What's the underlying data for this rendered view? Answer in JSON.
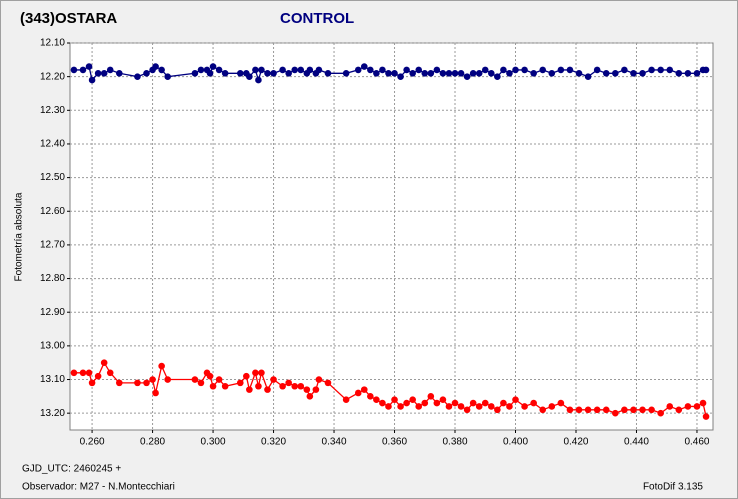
{
  "chart_data": {
    "type": "line",
    "title": "CONTROL",
    "y_label": "Fotometría absoluta",
    "footer_left": [
      "GJD_UTC: 2460245 +",
      "Observador: M27 - N.Montecchiari"
    ],
    "footer_right": "FotoDif 3.135",
    "grid": true,
    "y_inverted": true,
    "xlim": [
      0.2527,
      0.4653
    ],
    "ylim": [
      12.1,
      13.25
    ],
    "xticks": [
      {
        "value": 0.26,
        "label": "0.260"
      },
      {
        "value": 0.28,
        "label": "0.280"
      },
      {
        "value": 0.3,
        "label": "0.300"
      },
      {
        "value": 0.32,
        "label": "0.320"
      },
      {
        "value": 0.34,
        "label": "0.340"
      },
      {
        "value": 0.36,
        "label": "0.360"
      },
      {
        "value": 0.38,
        "label": "0.380"
      },
      {
        "value": 0.4,
        "label": "0.400"
      },
      {
        "value": 0.42,
        "label": "0.420"
      },
      {
        "value": 0.44,
        "label": "0.440"
      },
      {
        "value": 0.46,
        "label": "0.460"
      }
    ],
    "yticks": [
      {
        "value": 12.1,
        "label": "12.10"
      },
      {
        "value": 12.2,
        "label": "12.20"
      },
      {
        "value": 12.3,
        "label": "12.30"
      },
      {
        "value": 12.4,
        "label": "12.40"
      },
      {
        "value": 12.5,
        "label": "12.50"
      },
      {
        "value": 12.6,
        "label": "12.60"
      },
      {
        "value": 12.7,
        "label": "12.70"
      },
      {
        "value": 12.8,
        "label": "12.80"
      },
      {
        "value": 12.9,
        "label": "12.90"
      },
      {
        "value": 13.0,
        "label": "13.00"
      },
      {
        "value": 13.1,
        "label": "13.10"
      },
      {
        "value": 13.2,
        "label": "13.20"
      }
    ],
    "x": [
      0.254,
      0.257,
      0.259,
      0.26,
      0.262,
      0.264,
      0.266,
      0.269,
      0.275,
      0.278,
      0.28,
      0.281,
      0.283,
      0.285,
      0.294,
      0.296,
      0.298,
      0.299,
      0.3,
      0.302,
      0.304,
      0.309,
      0.311,
      0.312,
      0.314,
      0.315,
      0.316,
      0.318,
      0.32,
      0.323,
      0.325,
      0.327,
      0.329,
      0.331,
      0.332,
      0.334,
      0.335,
      0.338,
      0.344,
      0.348,
      0.35,
      0.352,
      0.354,
      0.356,
      0.358,
      0.36,
      0.362,
      0.364,
      0.366,
      0.368,
      0.37,
      0.372,
      0.374,
      0.376,
      0.378,
      0.38,
      0.382,
      0.384,
      0.386,
      0.388,
      0.39,
      0.392,
      0.394,
      0.396,
      0.398,
      0.4,
      0.403,
      0.406,
      0.409,
      0.412,
      0.415,
      0.418,
      0.421,
      0.424,
      0.427,
      0.43,
      0.433,
      0.436,
      0.439,
      0.442,
      0.445,
      0.448,
      0.451,
      0.454,
      0.457,
      0.46,
      0.462,
      0.463
    ],
    "series": [
      {
        "name": "(343)OSTARA",
        "color": "#ff0000",
        "values": [
          13.08,
          13.08,
          13.08,
          13.11,
          13.09,
          13.05,
          13.08,
          13.11,
          13.11,
          13.11,
          13.1,
          13.14,
          13.06,
          13.1,
          13.1,
          13.11,
          13.08,
          13.09,
          13.12,
          13.1,
          13.12,
          13.11,
          13.09,
          13.13,
          13.08,
          13.12,
          13.08,
          13.13,
          13.1,
          13.12,
          13.11,
          13.12,
          13.12,
          13.13,
          13.15,
          13.13,
          13.1,
          13.11,
          13.16,
          13.14,
          13.13,
          13.15,
          13.16,
          13.17,
          13.18,
          13.16,
          13.18,
          13.17,
          13.16,
          13.18,
          13.17,
          13.15,
          13.17,
          13.16,
          13.18,
          13.17,
          13.18,
          13.19,
          13.17,
          13.18,
          13.17,
          13.18,
          13.19,
          13.17,
          13.18,
          13.16,
          13.18,
          13.17,
          13.19,
          13.18,
          13.17,
          13.19,
          13.19,
          13.19,
          13.19,
          13.19,
          13.2,
          13.19,
          13.19,
          13.19,
          13.19,
          13.2,
          13.18,
          13.19,
          13.18,
          13.18,
          13.17,
          13.21
        ]
      },
      {
        "name": "CONTROL",
        "color": "#000080",
        "values": [
          12.18,
          12.18,
          12.17,
          12.21,
          12.19,
          12.19,
          12.18,
          12.19,
          12.2,
          12.19,
          12.18,
          12.17,
          12.18,
          12.2,
          12.19,
          12.18,
          12.18,
          12.19,
          12.17,
          12.18,
          12.19,
          12.19,
          12.19,
          12.2,
          12.18,
          12.21,
          12.18,
          12.19,
          12.19,
          12.18,
          12.19,
          12.18,
          12.18,
          12.19,
          12.18,
          12.19,
          12.18,
          12.19,
          12.19,
          12.18,
          12.17,
          12.18,
          12.19,
          12.18,
          12.19,
          12.19,
          12.2,
          12.18,
          12.19,
          12.18,
          12.19,
          12.19,
          12.18,
          12.19,
          12.19,
          12.19,
          12.19,
          12.2,
          12.19,
          12.19,
          12.18,
          12.19,
          12.2,
          12.18,
          12.19,
          12.18,
          12.18,
          12.19,
          12.18,
          12.19,
          12.18,
          12.18,
          12.19,
          12.2,
          12.18,
          12.19,
          12.19,
          12.18,
          12.19,
          12.19,
          12.18,
          12.18,
          12.18,
          12.19,
          12.19,
          12.19,
          12.18,
          12.18
        ]
      }
    ]
  }
}
